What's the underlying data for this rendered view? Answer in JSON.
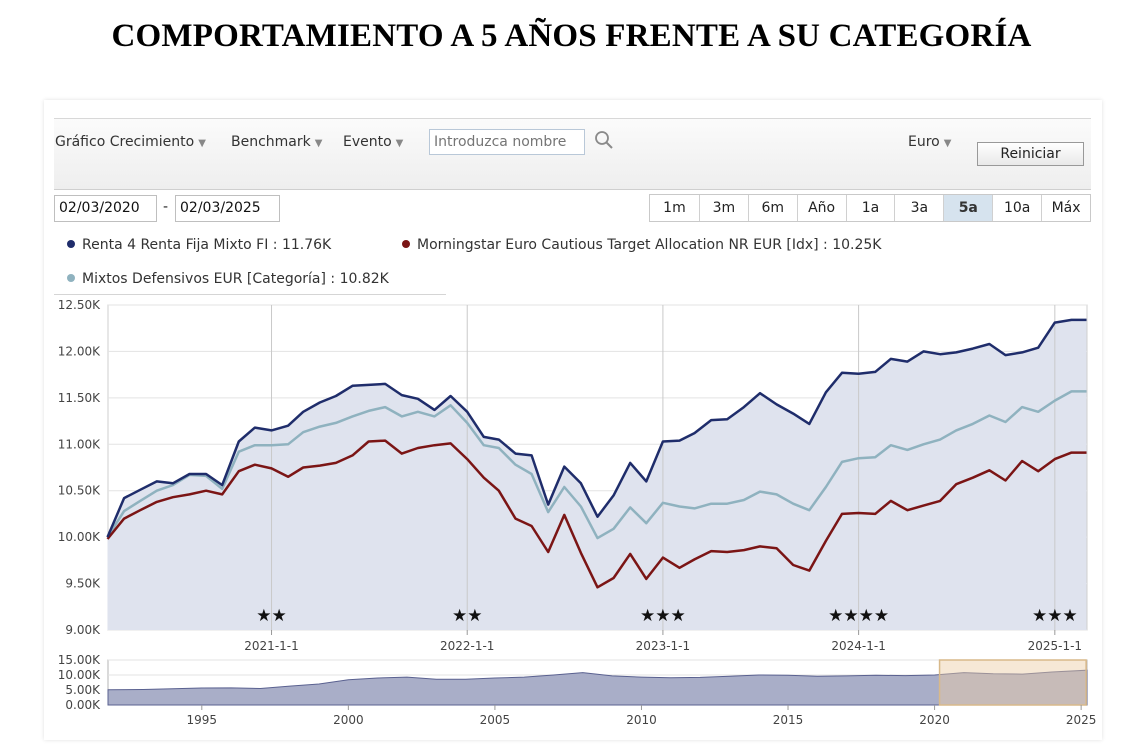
{
  "page_title": "COMPORTAMIENTO A 5 AÑOS FRENTE A SU CATEGORÍA",
  "toolbar": {
    "growth_chart": "Gráfico Crecimiento",
    "benchmark": "Benchmark",
    "event": "Evento",
    "search_placeholder": "Introduzca nombre",
    "currency": "Euro",
    "reset": "Reiniciar"
  },
  "date_range": {
    "start": "02/03/2020",
    "separator": "-",
    "end": "02/03/2025"
  },
  "periods": [
    {
      "label": "1m",
      "active": false
    },
    {
      "label": "3m",
      "active": false
    },
    {
      "label": "6m",
      "active": false
    },
    {
      "label": "Año",
      "active": false
    },
    {
      "label": "1a",
      "active": false
    },
    {
      "label": "3a",
      "active": false
    },
    {
      "label": "5a",
      "active": true
    },
    {
      "label": "10a",
      "active": false
    },
    {
      "label": "Máx",
      "active": false
    }
  ],
  "legend": [
    {
      "text": "Renta 4 Renta Fija Mixto FI : 11.76K",
      "color": "#1f2d6b"
    },
    {
      "text": "Morningstar Euro Cautious Target Allocation NR EUR [Idx] : 10.25K",
      "color": "#7b1515"
    },
    {
      "text": "Mixtos Defensivos EUR [Categoría] : 10.82K",
      "color": "#8fb2bf"
    }
  ],
  "chart_data": [
    {
      "type": "line",
      "y_ticks": [
        "12.50K",
        "12.00K",
        "11.50K",
        "11.00K",
        "10.50K",
        "10.00K",
        "9.50K",
        "9.00K"
      ],
      "ylim": [
        9000,
        12500
      ],
      "x_ticks": [
        "2021-1-1",
        "2022-1-1",
        "2023-1-1",
        "2024-1-1",
        "2025-1-1"
      ],
      "xlim": [
        "2020-03-02",
        "2025-03-02"
      ],
      "grid": true,
      "x": [
        "2020-03",
        "2020-04",
        "2020-05",
        "2020-06",
        "2020-07",
        "2020-08",
        "2020-09",
        "2020-10",
        "2020-11",
        "2020-12",
        "2021-01",
        "2021-02",
        "2021-03",
        "2021-04",
        "2021-05",
        "2021-06",
        "2021-07",
        "2021-08",
        "2021-09",
        "2021-10",
        "2021-11",
        "2021-12",
        "2022-01",
        "2022-02",
        "2022-03",
        "2022-04",
        "2022-05",
        "2022-06",
        "2022-07",
        "2022-08",
        "2022-09",
        "2022-10",
        "2022-11",
        "2022-12",
        "2023-01",
        "2023-02",
        "2023-03",
        "2023-04",
        "2023-05",
        "2023-06",
        "2023-07",
        "2023-08",
        "2023-09",
        "2023-10",
        "2023-11",
        "2023-12",
        "2024-01",
        "2024-02",
        "2024-03",
        "2024-04",
        "2024-05",
        "2024-06",
        "2024-07",
        "2024-08",
        "2024-09",
        "2024-10",
        "2024-11",
        "2024-12",
        "2025-01",
        "2025-02",
        "2025-03"
      ],
      "series": [
        {
          "name": "Renta 4 Renta Fija Mixto FI",
          "color": "#1f2d6b",
          "values": [
            10000,
            10420,
            10510,
            10600,
            10580,
            10680,
            10680,
            10560,
            11030,
            11180,
            11150,
            11200,
            11350,
            11450,
            11520,
            11630,
            11640,
            11650,
            11530,
            11490,
            11370,
            11520,
            11350,
            11080,
            11050,
            10900,
            10880,
            10350,
            10760,
            10580,
            10220,
            10450,
            10800,
            10600,
            11030,
            11040,
            11120,
            11260,
            11270,
            11400,
            11550,
            11430,
            11330,
            11220,
            11560,
            11770,
            11760,
            11780,
            11920,
            11890,
            12000,
            11970,
            11990,
            12030,
            12080,
            11960,
            11990,
            12040,
            12310,
            12340,
            12340
          ]
        },
        {
          "name": "Morningstar Euro Cautious Target Allocation NR EUR [Idx]",
          "color": "#7b1515",
          "values": [
            9980,
            10200,
            10290,
            10380,
            10430,
            10460,
            10500,
            10460,
            10710,
            10780,
            10740,
            10650,
            10750,
            10770,
            10800,
            10880,
            11030,
            11040,
            10900,
            10960,
            10990,
            11010,
            10840,
            10640,
            10500,
            10200,
            10120,
            9840,
            10240,
            9830,
            9460,
            9560,
            9820,
            9550,
            9780,
            9670,
            9760,
            9850,
            9840,
            9860,
            9900,
            9880,
            9700,
            9640,
            9960,
            10250,
            10260,
            10250,
            10390,
            10290,
            10340,
            10390,
            10570,
            10640,
            10720,
            10610,
            10820,
            10710,
            10840,
            10910,
            10910
          ]
        },
        {
          "name": "Mixtos Defensivos EUR [Categoría]",
          "color": "#8fb2bf",
          "values": [
            10000,
            10280,
            10390,
            10500,
            10560,
            10670,
            10660,
            10520,
            10920,
            10990,
            10990,
            11000,
            11130,
            11190,
            11230,
            11300,
            11360,
            11400,
            11300,
            11350,
            11300,
            11420,
            11230,
            10990,
            10960,
            10780,
            10680,
            10270,
            10540,
            10330,
            9990,
            10090,
            10320,
            10150,
            10370,
            10330,
            10310,
            10360,
            10360,
            10400,
            10490,
            10460,
            10360,
            10290,
            10540,
            10810,
            10850,
            10860,
            10990,
            10940,
            11000,
            11050,
            11150,
            11220,
            11310,
            11240,
            11400,
            11350,
            11470,
            11570,
            11570
          ]
        }
      ],
      "markers": [
        {
          "x": "2021-01",
          "rating": "★★"
        },
        {
          "x": "2022-01",
          "rating": "★★"
        },
        {
          "x": "2023-01",
          "rating": "★★★"
        },
        {
          "x": "2024-01",
          "rating": "★★★★"
        },
        {
          "x": "2025-01",
          "rating": "★★★"
        }
      ]
    },
    {
      "type": "area",
      "role": "navigator",
      "y_ticks": [
        "15.00K",
        "10.00K",
        "5.00K",
        "0.00K"
      ],
      "ylim": [
        0,
        15000
      ],
      "x_ticks": [
        "1995",
        "2000",
        "2005",
        "2010",
        "2015",
        "2020",
        "2025"
      ],
      "xlim": [
        1991.8,
        2025.2
      ],
      "selected_range": [
        2020.17,
        2025.17
      ],
      "x": [
        1991.8,
        1993,
        1994,
        1995,
        1996,
        1997,
        1998,
        1999,
        2000,
        2001,
        2002,
        2003,
        2004,
        2005,
        2006,
        2007,
        2008,
        2009,
        2010,
        2011,
        2012,
        2013,
        2014,
        2015,
        2016,
        2017,
        2018,
        2019,
        2020,
        2021,
        2022,
        2023,
        2024,
        2025.2
      ],
      "values": [
        5100,
        5150,
        5400,
        5650,
        5700,
        5500,
        6300,
        7000,
        8400,
        9000,
        9300,
        8600,
        8600,
        9000,
        9300,
        10000,
        10800,
        9700,
        9300,
        9100,
        9200,
        9600,
        10000,
        9900,
        9600,
        9700,
        9900,
        9800,
        10000,
        10800,
        10400,
        10300,
        11000,
        11600
      ]
    }
  ]
}
